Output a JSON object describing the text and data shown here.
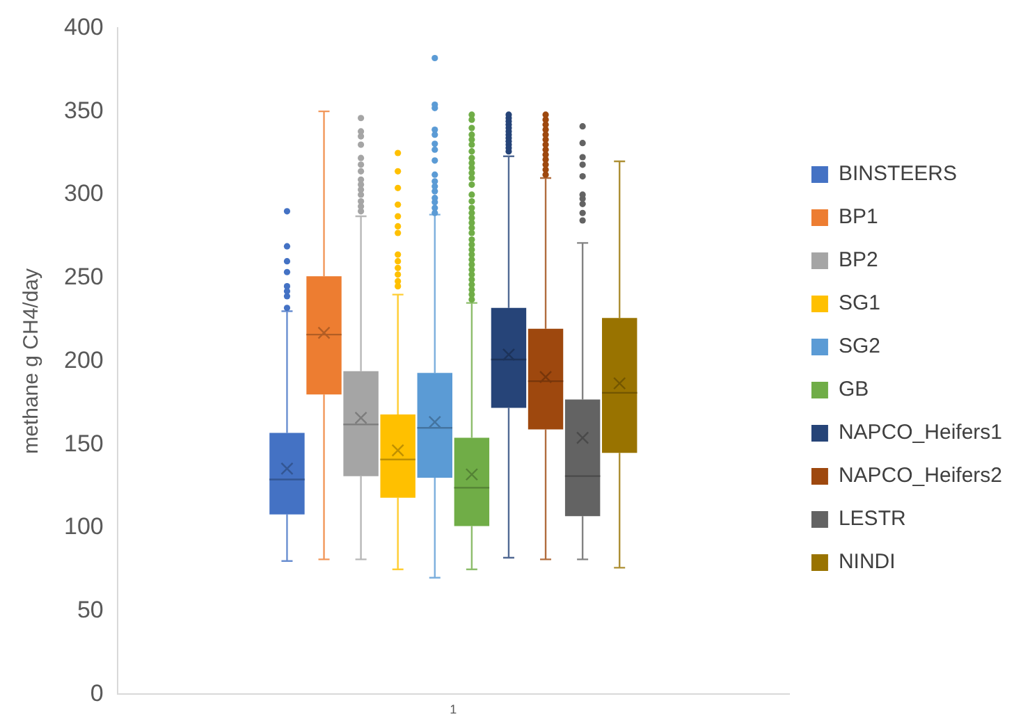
{
  "chart_data": {
    "type": "box",
    "ylabel": "methane g CH4/day",
    "categories": [
      "1"
    ],
    "ylim": [
      0,
      400
    ],
    "yticks": [
      0,
      50,
      100,
      150,
      200,
      250,
      300,
      350,
      400
    ],
    "grid": false,
    "legend": "right",
    "series": [
      {
        "name": "BINSTEERS",
        "color": "#4472c4",
        "boxes": [
          {
            "low": 80,
            "q1": 108,
            "median": 129,
            "q3": 157,
            "high": 230,
            "mean": 135.5,
            "outliers": [
              232,
              239,
              242,
              245,
              253.5,
              260,
              269,
              290
            ]
          }
        ]
      },
      {
        "name": "BP1",
        "color": "#ed7d31",
        "boxes": [
          {
            "low": 81,
            "q1": 180,
            "median": 216,
            "q3": 251,
            "high": 350,
            "mean": 217
          }
        ]
      },
      {
        "name": "BP2",
        "color": "#a5a5a5",
        "boxes": [
          {
            "low": 81,
            "q1": 131,
            "median": 162,
            "q3": 194,
            "high": 287,
            "mean": 166,
            "outliers": [
              290,
              293,
              296,
              300,
              303,
              306,
              309,
              314,
              318,
              322,
              330,
              335,
              338,
              346
            ]
          }
        ]
      },
      {
        "name": "SG1",
        "color": "#ffc000",
        "boxes": [
          {
            "low": 75,
            "q1": 118,
            "median": 141,
            "q3": 168,
            "high": 240,
            "mean": 146.5,
            "outliers": [
              245,
              248,
              252,
              256,
              260,
              264,
              277,
              281,
              287,
              294,
              304,
              314,
              325
            ]
          }
        ]
      },
      {
        "name": "SG2",
        "color": "#5b9bd5",
        "boxes": [
          {
            "low": 70,
            "q1": 130,
            "median": 160,
            "q3": 193,
            "high": 288,
            "mean": 163.5,
            "outliers": [
              289,
              292,
              295.5,
              298,
              302,
              305,
              308,
              312,
              320.5,
              327,
              330.5,
              336,
              339,
              352,
              354,
              382
            ]
          }
        ]
      },
      {
        "name": "GB",
        "color": "#70ad47",
        "boxes": [
          {
            "low": 75,
            "q1": 101,
            "median": 124,
            "q3": 154,
            "high": 235,
            "mean": 132,
            "outliers": [
              237,
              240,
              243,
              246,
              249,
              252,
              255,
              258,
              261,
              264,
              267,
              270,
              273,
              277,
              280,
              283,
              286,
              289,
              292,
              296,
              300,
              306,
              310,
              313,
              316,
              319,
              322,
              326,
              330,
              333,
              336,
              340,
              345,
              348
            ]
          }
        ]
      },
      {
        "name": "NAPCO_Heifers1",
        "color": "#264478",
        "boxes": [
          {
            "low": 82,
            "q1": 172,
            "median": 201,
            "q3": 232,
            "high": 323,
            "mean": 204,
            "outliers": [
              326,
              328,
              330,
              332,
              334,
              336,
              338,
              340,
              342,
              344,
              346,
              348
            ]
          }
        ]
      },
      {
        "name": "NAPCO_Heifers2",
        "color": "#9e480e",
        "boxes": [
          {
            "low": 81,
            "q1": 159,
            "median": 188,
            "q3": 219.5,
            "high": 310,
            "mean": 190.5,
            "outliers": [
              312,
              315,
              318,
              321,
              324,
              327,
              330,
              333,
              336,
              339,
              342,
              345,
              348
            ]
          }
        ]
      },
      {
        "name": "LESTR",
        "color": "#636363",
        "boxes": [
          {
            "low": 81,
            "q1": 107,
            "median": 131,
            "q3": 177,
            "high": 271,
            "mean": 154,
            "outliers": [
              284.5,
              289,
              294.4,
              297.6,
              300,
              311,
              318,
              322.5,
              331,
              341
            ]
          }
        ]
      },
      {
        "name": "NINDI",
        "color": "#997300",
        "boxes": [
          {
            "low": 76,
            "q1": 145,
            "median": 181,
            "q3": 226,
            "high": 320,
            "mean": 186.7
          }
        ]
      }
    ]
  }
}
